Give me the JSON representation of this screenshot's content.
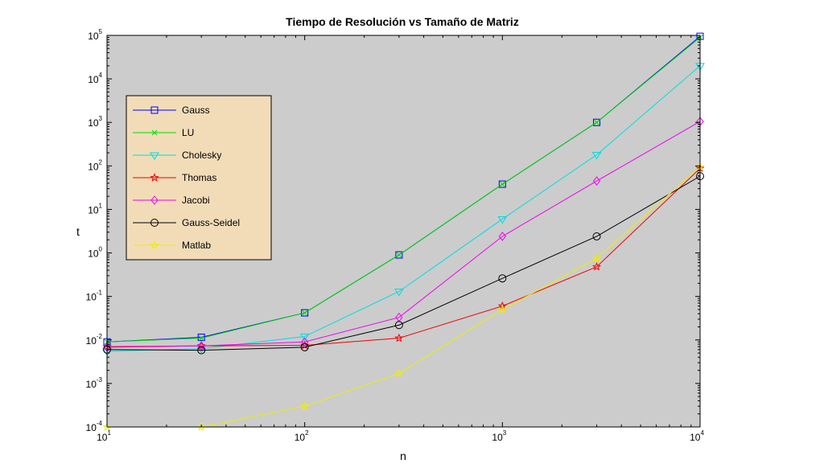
{
  "chart_data": {
    "type": "line",
    "title": "Tiempo de Resolución vs Tamaño de Matriz",
    "xlabel": "n",
    "ylabel": "t",
    "xscale": "log",
    "yscale": "log",
    "xlim": [
      10,
      10000
    ],
    "ylim": [
      0.0001,
      100000
    ],
    "grid": false,
    "legend_position": "upper-left",
    "plot_background": "#cccccc",
    "legend_background": "#f2dcb8",
    "x_ticks": [
      {
        "base": "10",
        "exp": "1",
        "value": 10
      },
      {
        "base": "10",
        "exp": "2",
        "value": 100
      },
      {
        "base": "10",
        "exp": "3",
        "value": 1000
      },
      {
        "base": "10",
        "exp": "4",
        "value": 10000
      }
    ],
    "y_ticks": [
      {
        "base": "10",
        "exp": "-4",
        "value": 0.0001
      },
      {
        "base": "10",
        "exp": "-3",
        "value": 0.001
      },
      {
        "base": "10",
        "exp": "-2",
        "value": 0.01
      },
      {
        "base": "10",
        "exp": "-1",
        "value": 0.1
      },
      {
        "base": "10",
        "exp": "0",
        "value": 1
      },
      {
        "base": "10",
        "exp": "1",
        "value": 10
      },
      {
        "base": "10",
        "exp": "2",
        "value": 100
      },
      {
        "base": "10",
        "exp": "3",
        "value": 1000
      },
      {
        "base": "10",
        "exp": "4",
        "value": 10000
      },
      {
        "base": "10",
        "exp": "5",
        "value": 100000
      }
    ],
    "x": [
      10,
      30,
      100,
      300,
      1000,
      3000,
      10000
    ],
    "series": [
      {
        "name": "Gauss",
        "color": "#0000ff",
        "marker": "square",
        "values": [
          0.009,
          0.0115,
          0.042,
          0.9,
          38,
          1000,
          95000
        ]
      },
      {
        "name": "LU",
        "color": "#00dd00",
        "marker": "x",
        "values": [
          0.009,
          0.011,
          0.042,
          0.9,
          38,
          1000,
          90000
        ]
      },
      {
        "name": "Cholesky",
        "color": "#00dddd",
        "marker": "triangle-down",
        "values": [
          0.0055,
          0.0063,
          0.012,
          0.13,
          6,
          180,
          20000
        ]
      },
      {
        "name": "Thomas",
        "color": "#ee0000",
        "marker": "star",
        "values": [
          0.007,
          0.0073,
          0.0075,
          0.011,
          0.06,
          0.48,
          88
        ]
      },
      {
        "name": "Jacobi",
        "color": "#ee00ee",
        "marker": "diamond",
        "values": [
          0.0068,
          0.0073,
          0.009,
          0.033,
          2.4,
          45,
          1050
        ]
      },
      {
        "name": "Gauss-Seidel",
        "color": "#000000",
        "marker": "circle",
        "values": [
          0.006,
          0.0058,
          0.0068,
          0.022,
          0.26,
          2.4,
          58
        ]
      },
      {
        "name": "Matlab",
        "color": "#eeee00",
        "marker": "star",
        "values": [
          0.0001,
          0.0001,
          0.0003,
          0.0017,
          0.05,
          0.75,
          95
        ]
      }
    ]
  }
}
